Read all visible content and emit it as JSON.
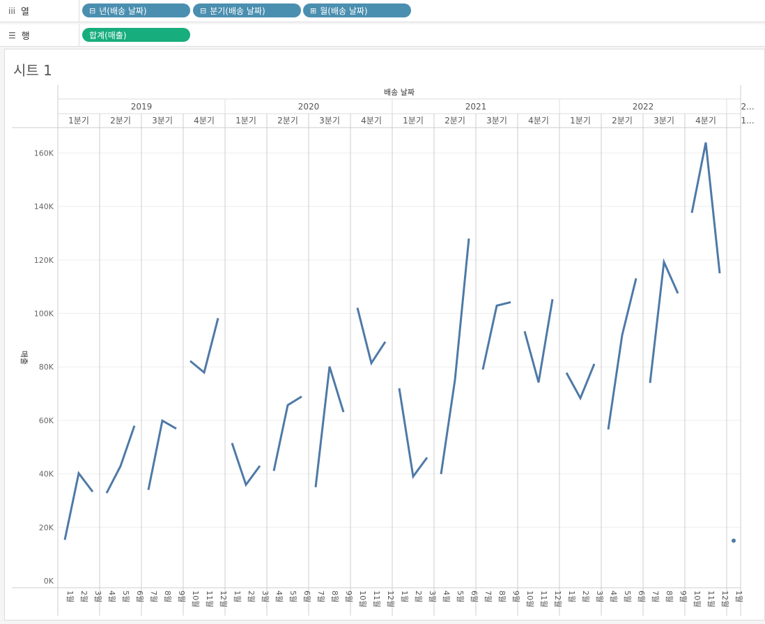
{
  "shelves": {
    "columns": {
      "label": "열",
      "icon": "columns-icon",
      "pills": [
        {
          "label": "년(배송 날짜)",
          "expander": "⊟"
        },
        {
          "label": "분기(배송 날짜)",
          "expander": "⊟"
        },
        {
          "label": "월(배송 날짜)",
          "expander": "⊞"
        }
      ]
    },
    "rows": {
      "label": "행",
      "icon": "rows-icon",
      "pills": [
        {
          "label": "합계(매출)"
        }
      ]
    }
  },
  "sheet": {
    "title": "시트 1"
  },
  "chart_data": {
    "type": "line",
    "header_title": "배송 날짜",
    "ylabel": "매출",
    "ylim": [
      0,
      170000
    ],
    "yticks": [
      0,
      20000,
      40000,
      60000,
      80000,
      100000,
      120000,
      140000,
      160000
    ],
    "ytick_labels": [
      "0K",
      "20K",
      "40K",
      "60K",
      "80K",
      "100K",
      "120K",
      "140K",
      "160K"
    ],
    "line_color": "#4e79a7",
    "grid": true,
    "years": [
      {
        "label": "2019",
        "quarters": 4
      },
      {
        "label": "2020",
        "quarters": 4
      },
      {
        "label": "2021",
        "quarters": 4
      },
      {
        "label": "2022",
        "quarters": 4
      },
      {
        "label": "2...",
        "quarters": 1
      }
    ],
    "quarter_labels": [
      "1분기",
      "2분기",
      "3분기",
      "4분기",
      "1분기",
      "2분기",
      "3분기",
      "4분기",
      "1분기",
      "2분기",
      "3분기",
      "4분기",
      "1분기",
      "2분기",
      "3분기",
      "4분기",
      "1..."
    ],
    "series": [
      {
        "quarter": "2019 1분기",
        "months": [
          "1월",
          "2월",
          "3월"
        ],
        "values": [
          15300,
          40200,
          33300
        ]
      },
      {
        "quarter": "2019 2분기",
        "months": [
          "4월",
          "5월",
          "6월"
        ],
        "values": [
          32800,
          42900,
          58000
        ]
      },
      {
        "quarter": "2019 3분기",
        "months": [
          "7월",
          "8월",
          "9월"
        ],
        "values": [
          34000,
          59900,
          56900
        ]
      },
      {
        "quarter": "2019 4분기",
        "months": [
          "10월",
          "11월",
          "12월"
        ],
        "values": [
          82200,
          77900,
          98200
        ]
      },
      {
        "quarter": "2020 1분기",
        "months": [
          "1월",
          "2월",
          "3월"
        ],
        "values": [
          51500,
          35900,
          43000
        ]
      },
      {
        "quarter": "2020 2분기",
        "months": [
          "4월",
          "5월",
          "6월"
        ],
        "values": [
          41100,
          65700,
          68900
        ]
      },
      {
        "quarter": "2020 3분기",
        "months": [
          "7월",
          "8월",
          "9월"
        ],
        "values": [
          35000,
          80100,
          63100
        ]
      },
      {
        "quarter": "2020 4분기",
        "months": [
          "10월",
          "11월",
          "12월"
        ],
        "values": [
          102100,
          81400,
          89400
        ]
      },
      {
        "quarter": "2021 1분기",
        "months": [
          "1월",
          "2월",
          "3월"
        ],
        "values": [
          72000,
          39000,
          46100
        ]
      },
      {
        "quarter": "2021 2분기",
        "months": [
          "4월",
          "5월",
          "6월"
        ],
        "values": [
          39900,
          75100,
          128000
        ]
      },
      {
        "quarter": "2021 3분기",
        "months": [
          "7월",
          "8월",
          "9월"
        ],
        "values": [
          79000,
          102900,
          104200
        ]
      },
      {
        "quarter": "2021 4분기",
        "months": [
          "10월",
          "11월",
          "12월"
        ],
        "values": [
          93300,
          74200,
          105300
        ]
      },
      {
        "quarter": "2022 1분기",
        "months": [
          "1월",
          "2월",
          "3월"
        ],
        "values": [
          77800,
          68300,
          81100
        ]
      },
      {
        "quarter": "2022 2분기",
        "months": [
          "4월",
          "5월",
          "6월"
        ],
        "values": [
          56600,
          91900,
          113100
        ]
      },
      {
        "quarter": "2022 3분기",
        "months": [
          "7월",
          "8월",
          "9월"
        ],
        "values": [
          74000,
          119200,
          107500
        ]
      },
      {
        "quarter": "2022 4분기",
        "months": [
          "10월",
          "11월",
          "12월"
        ],
        "values": [
          137600,
          163900,
          115000
        ]
      },
      {
        "quarter": "2023 1분기",
        "months": [
          "1월"
        ],
        "values": [
          15000
        ]
      }
    ]
  }
}
